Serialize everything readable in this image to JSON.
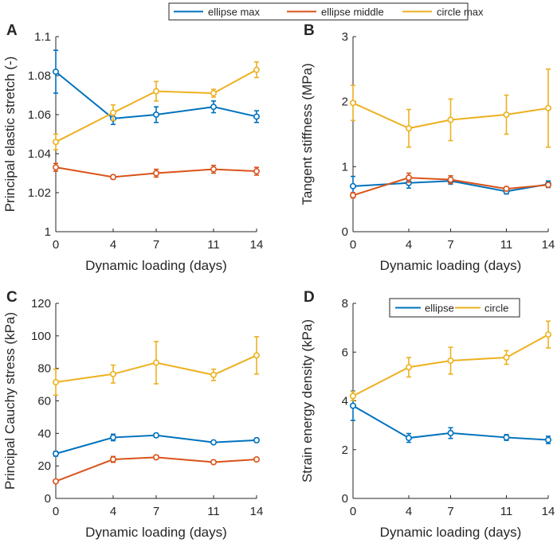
{
  "legend_top": [
    {
      "name": "ellipse max",
      "color": "#0072BD"
    },
    {
      "name": "ellipse middle",
      "color": "#D95319"
    },
    {
      "name": "circle max",
      "color": "#EDB120"
    }
  ],
  "chart_data": [
    {
      "type": "line",
      "panel_label": "A",
      "xlabel": "Dynamic loading (days)",
      "ylabel": "Principal elastic stretch (-)",
      "x": [
        0,
        4,
        7,
        11,
        14
      ],
      "xticks": [
        "0",
        "4",
        "7",
        "11",
        "14"
      ],
      "xlim": [
        0,
        14
      ],
      "ylim": [
        1,
        1.1
      ],
      "yticks": [
        1,
        1.02,
        1.04,
        1.06,
        1.08,
        1.1
      ],
      "yticklabels": [
        "1",
        "1.02",
        "1.04",
        "1.06",
        "1.08",
        "1.1"
      ],
      "series": [
        {
          "name": "ellipse max",
          "color": "#0072BD",
          "values": [
            1.082,
            1.058,
            1.06,
            1.064,
            1.059
          ],
          "err": [
            0.011,
            0.003,
            0.004,
            0.003,
            0.003
          ]
        },
        {
          "name": "ellipse middle",
          "color": "#D95319",
          "values": [
            1.033,
            1.028,
            1.03,
            1.032,
            1.031
          ],
          "err": [
            0.002,
            0.001,
            0.002,
            0.002,
            0.002
          ]
        },
        {
          "name": "circle max",
          "color": "#EDB120",
          "values": [
            1.046,
            1.061,
            1.072,
            1.071,
            1.083
          ],
          "err": [
            0.004,
            0.004,
            0.005,
            0.002,
            0.004
          ]
        }
      ]
    },
    {
      "type": "line",
      "panel_label": "B",
      "xlabel": "Dynamic loading (days)",
      "ylabel": "Tangent stiffness (MPa)",
      "x": [
        0,
        4,
        7,
        11,
        14
      ],
      "xticks": [
        "0",
        "4",
        "7",
        "11",
        "14"
      ],
      "xlim": [
        0,
        14
      ],
      "ylim": [
        0,
        3
      ],
      "yticks": [
        0,
        1,
        2,
        3
      ],
      "yticklabels": [
        "0",
        "1",
        "2",
        "3"
      ],
      "series": [
        {
          "name": "ellipse max",
          "color": "#0072BD",
          "values": [
            0.7,
            0.75,
            0.78,
            0.62,
            0.73
          ],
          "err": [
            0.15,
            0.08,
            0.05,
            0.04,
            0.05
          ]
        },
        {
          "name": "ellipse middle",
          "color": "#D95319",
          "values": [
            0.56,
            0.83,
            0.8,
            0.66,
            0.72
          ],
          "err": [
            0.04,
            0.07,
            0.06,
            0.03,
            0.03
          ]
        },
        {
          "name": "circle max",
          "color": "#EDB120",
          "values": [
            1.98,
            1.59,
            1.72,
            1.8,
            1.9
          ],
          "err": [
            0.27,
            0.29,
            0.32,
            0.3,
            0.6
          ]
        }
      ]
    },
    {
      "type": "line",
      "panel_label": "C",
      "xlabel": "Dynamic loading (days)",
      "ylabel": "Principal Cauchy stress (kPa)",
      "x": [
        0,
        4,
        7,
        11,
        14
      ],
      "xticks": [
        "0",
        "4",
        "7",
        "11",
        "14"
      ],
      "xlim": [
        0,
        14
      ],
      "ylim": [
        0,
        120
      ],
      "yticks": [
        0,
        20,
        40,
        60,
        80,
        100,
        120
      ],
      "yticklabels": [
        "0",
        "20",
        "40",
        "60",
        "80",
        "100",
        "120"
      ],
      "series": [
        {
          "name": "ellipse max",
          "color": "#0072BD",
          "values": [
            27.5,
            37.5,
            38.8,
            34.5,
            35.8
          ],
          "err": [
            1.5,
            2.0,
            1.2,
            1.0,
            1.2
          ]
        },
        {
          "name": "ellipse middle",
          "color": "#D95319",
          "values": [
            10.5,
            24.0,
            25.3,
            22.3,
            24.0
          ],
          "err": [
            1.0,
            1.8,
            1.2,
            1.0,
            1.0
          ]
        },
        {
          "name": "circle max",
          "color": "#EDB120",
          "values": [
            71.5,
            76.5,
            83.5,
            76.0,
            88.0
          ],
          "err": [
            8.0,
            5.5,
            13.0,
            3.5,
            11.5
          ]
        }
      ]
    },
    {
      "type": "line",
      "panel_label": "D",
      "xlabel": "Dynamic loading (days)",
      "ylabel": "Strain energy density (kPa)",
      "x": [
        0,
        4,
        7,
        11,
        14
      ],
      "xticks": [
        "0",
        "4",
        "7",
        "11",
        "14"
      ],
      "xlim": [
        0,
        14
      ],
      "ylim": [
        0,
        8
      ],
      "yticks": [
        0,
        2,
        4,
        6,
        8
      ],
      "yticklabels": [
        "0",
        "2",
        "4",
        "6",
        "8"
      ],
      "legend": [
        {
          "name": "ellipse",
          "color": "#0072BD"
        },
        {
          "name": "circle",
          "color": "#EDB120"
        }
      ],
      "series": [
        {
          "name": "ellipse",
          "color": "#0072BD",
          "values": [
            3.8,
            2.48,
            2.68,
            2.5,
            2.4
          ],
          "err": [
            0.6,
            0.18,
            0.22,
            0.12,
            0.15
          ]
        },
        {
          "name": "circle",
          "color": "#EDB120",
          "values": [
            4.2,
            5.38,
            5.65,
            5.78,
            6.72
          ],
          "err": [
            0.18,
            0.4,
            0.55,
            0.28,
            0.55
          ]
        }
      ]
    }
  ]
}
